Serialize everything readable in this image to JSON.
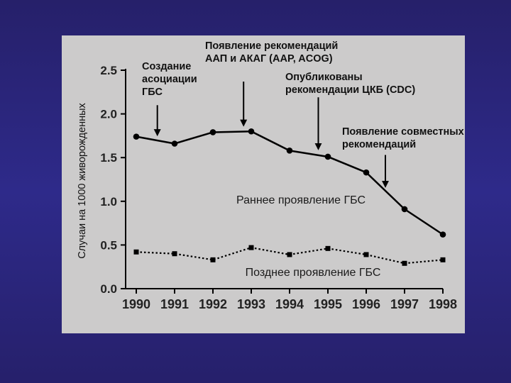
{
  "chart_data": {
    "type": "line",
    "title": "",
    "xlabel": "",
    "ylabel": "Случаи на 1000 живорожденных",
    "categories": [
      "1990",
      "1991",
      "1992",
      "1993",
      "1994",
      "1995",
      "1996",
      "1997",
      "1998"
    ],
    "ylim": [
      0,
      2.5
    ],
    "yticks": [
      "0.0",
      "0.5",
      "1.0",
      "1.5",
      "2.0",
      "2.5"
    ],
    "grid": false,
    "series": [
      {
        "name": "Раннее проявление ГБС",
        "style": "solid",
        "marker": "circle",
        "values": [
          1.74,
          1.66,
          1.79,
          1.8,
          1.58,
          1.51,
          1.33,
          0.91,
          0.62
        ]
      },
      {
        "name": "Позднее проявление ГБС",
        "style": "dotted",
        "marker": "square",
        "values": [
          0.42,
          0.4,
          0.33,
          0.47,
          0.39,
          0.46,
          0.39,
          0.29,
          0.33
        ]
      }
    ],
    "annotations": [
      {
        "lines": [
          "Создание",
          "асоциации",
          "ГБС"
        ],
        "arrow_x": 1990.55,
        "arrow_from": 2.1,
        "arrow_to": 1.76
      },
      {
        "lines": [
          "Появление рекомендаций",
          "ААП и АКАГ (AAP, ACOG)"
        ],
        "arrow_x": 1992.8,
        "arrow_from": 2.37,
        "arrow_to": 1.87
      },
      {
        "lines": [
          "Опубликованы",
          "рекомендации ЦКБ (CDC)"
        ],
        "arrow_x": 1994.75,
        "arrow_from": 2.19,
        "arrow_to": 1.6
      },
      {
        "lines": [
          "Появление совместных",
          "рекомендаций"
        ],
        "arrow_x": 1996.5,
        "arrow_from": 1.53,
        "arrow_to": 1.17
      }
    ],
    "background": "#cccbcb",
    "line_color": "#000000"
  }
}
